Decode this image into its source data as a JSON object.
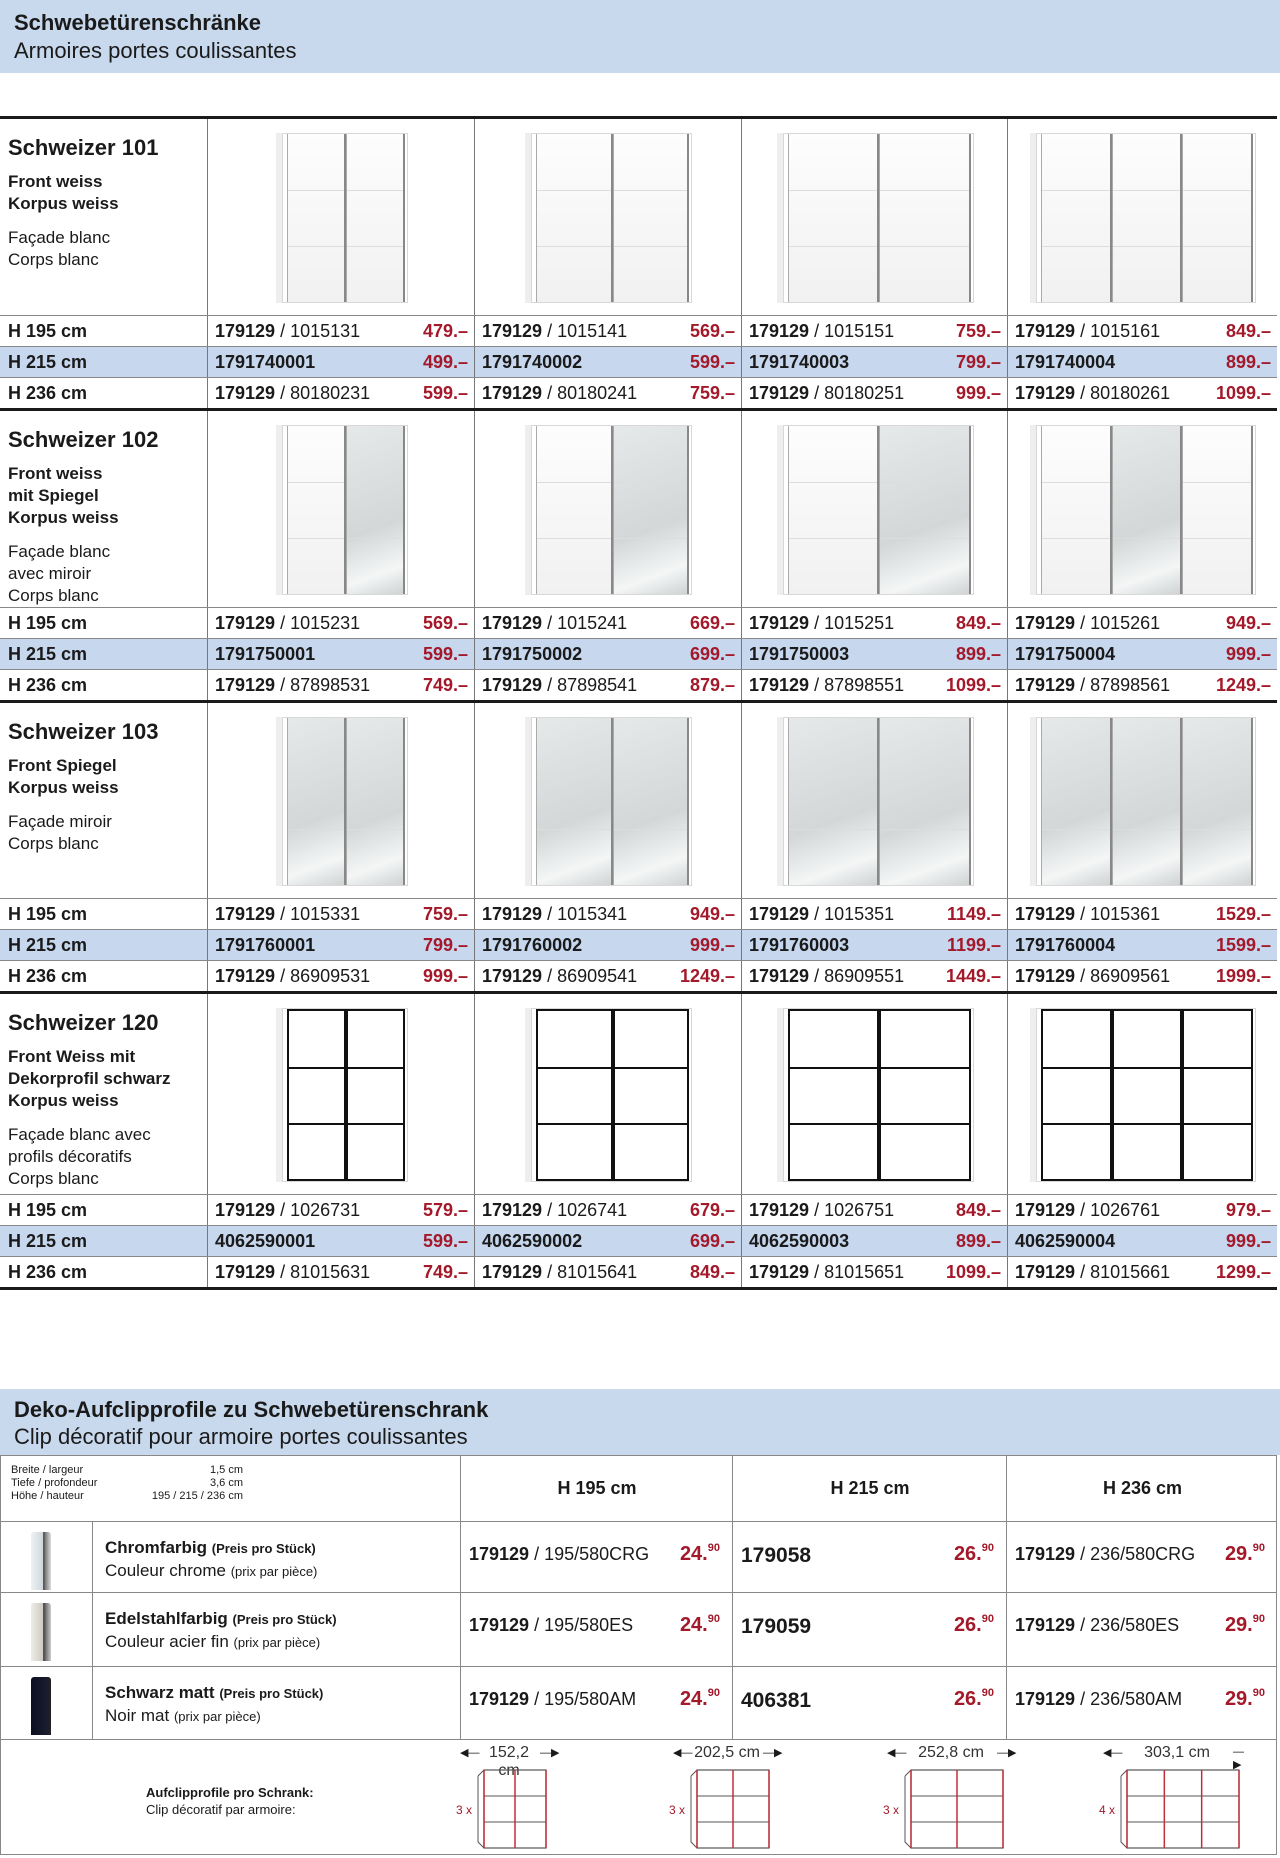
{
  "header": {
    "title": "Schwebetürenschränke",
    "subtitle": "Armoires portes coulissantes"
  },
  "products": [
    {
      "name": "Schweizer 101",
      "desc_de": [
        "Front weiss",
        "Korpus weiss"
      ],
      "desc_fr": [
        "Façade blanc",
        "Corps blanc"
      ],
      "style": "white",
      "rows": [
        {
          "height": "H 195 cm",
          "cells": [
            {
              "bold": "179129",
              "rest": " / 1015131",
              "price": "479.–"
            },
            {
              "bold": "179129",
              "rest": " / 1015141",
              "price": "569.–"
            },
            {
              "bold": "179129",
              "rest": " / 1015151",
              "price": "759.–"
            },
            {
              "bold": "179129",
              "rest": " / 1015161",
              "price": "849.–"
            }
          ]
        },
        {
          "height": "H 215 cm",
          "cells": [
            {
              "bold": "1791740001",
              "rest": "",
              "price": "499.–"
            },
            {
              "bold": "1791740002",
              "rest": "",
              "price": "599.–"
            },
            {
              "bold": "1791740003",
              "rest": "",
              "price": "799.–"
            },
            {
              "bold": "1791740004",
              "rest": "",
              "price": "899.–"
            }
          ]
        },
        {
          "height": "H 236 cm",
          "cells": [
            {
              "bold": "179129",
              "rest": " / 80180231",
              "price": "599.–"
            },
            {
              "bold": "179129",
              "rest": " / 80180241",
              "price": "759.–"
            },
            {
              "bold": "179129",
              "rest": " / 80180251",
              "price": "999.–"
            },
            {
              "bold": "179129",
              "rest": " / 80180261",
              "price": "1099.–"
            }
          ]
        }
      ]
    },
    {
      "name": "Schweizer 102",
      "desc_de": [
        "Front weiss",
        "mit Spiegel",
        "Korpus weiss"
      ],
      "desc_fr": [
        "Façade blanc",
        "avec miroir",
        "Corps blanc"
      ],
      "style": "partmirror",
      "rows": [
        {
          "height": "H 195 cm",
          "cells": [
            {
              "bold": "179129",
              "rest": " / 1015231",
              "price": "569.–"
            },
            {
              "bold": "179129",
              "rest": " / 1015241",
              "price": "669.–"
            },
            {
              "bold": "179129",
              "rest": " / 1015251",
              "price": "849.–"
            },
            {
              "bold": "179129",
              "rest": " / 1015261",
              "price": "949.–"
            }
          ]
        },
        {
          "height": "H 215 cm",
          "cells": [
            {
              "bold": "1791750001",
              "rest": "",
              "price": "599.–"
            },
            {
              "bold": "1791750002",
              "rest": "",
              "price": "699.–"
            },
            {
              "bold": "1791750003",
              "rest": "",
              "price": "899.–"
            },
            {
              "bold": "1791750004",
              "rest": "",
              "price": "999.–"
            }
          ]
        },
        {
          "height": "H 236 cm",
          "cells": [
            {
              "bold": "179129",
              "rest": " / 87898531",
              "price": "749.–"
            },
            {
              "bold": "179129",
              "rest": " / 87898541",
              "price": "879.–"
            },
            {
              "bold": "179129",
              "rest": " / 87898551",
              "price": "1099.–"
            },
            {
              "bold": "179129",
              "rest": " / 87898561",
              "price": "1249.–"
            }
          ]
        }
      ]
    },
    {
      "name": "Schweizer 103",
      "desc_de": [
        "Front Spiegel",
        "Korpus weiss"
      ],
      "desc_fr": [
        "Façade miroir",
        "Corps blanc"
      ],
      "style": "mirror",
      "rows": [
        {
          "height": "H 195 cm",
          "cells": [
            {
              "bold": "179129",
              "rest": " / 1015331",
              "price": "759.–"
            },
            {
              "bold": "179129",
              "rest": " / 1015341",
              "price": "949.–"
            },
            {
              "bold": "179129",
              "rest": " / 1015351",
              "price": "1149.–"
            },
            {
              "bold": "179129",
              "rest": " / 1015361",
              "price": "1529.–"
            }
          ]
        },
        {
          "height": "H 215 cm",
          "cells": [
            {
              "bold": "1791760001",
              "rest": "",
              "price": "799.–"
            },
            {
              "bold": "1791760002",
              "rest": "",
              "price": "999.–"
            },
            {
              "bold": "1791760003",
              "rest": "",
              "price": "1199.–"
            },
            {
              "bold": "1791760004",
              "rest": "",
              "price": "1599.–"
            }
          ]
        },
        {
          "height": "H 236 cm",
          "cells": [
            {
              "bold": "179129",
              "rest": " / 86909531",
              "price": "999.–"
            },
            {
              "bold": "179129",
              "rest": " / 86909541",
              "price": "1249.–"
            },
            {
              "bold": "179129",
              "rest": " / 86909551",
              "price": "1449.–"
            },
            {
              "bold": "179129",
              "rest": " / 86909561",
              "price": "1999.–"
            }
          ]
        }
      ]
    },
    {
      "name": "Schweizer 120",
      "desc_de": [
        "Front Weiss mit",
        "Dekorprofil schwarz",
        "Korpus weiss"
      ],
      "desc_fr": [
        "Façade blanc avec",
        "profils décoratifs",
        "Corps blanc"
      ],
      "style": "black",
      "rows": [
        {
          "height": "H 195 cm",
          "cells": [
            {
              "bold": "179129",
              "rest": " / 1026731",
              "price": "579.–"
            },
            {
              "bold": "179129",
              "rest": " / 1026741",
              "price": "679.–"
            },
            {
              "bold": "179129",
              "rest": " / 1026751",
              "price": "849.–"
            },
            {
              "bold": "179129",
              "rest": " / 1026761",
              "price": "979.–"
            }
          ]
        },
        {
          "height": "H 215 cm",
          "cells": [
            {
              "bold": "4062590001",
              "rest": "",
              "price": "599.–"
            },
            {
              "bold": "4062590002",
              "rest": "",
              "price": "699.–"
            },
            {
              "bold": "4062590003",
              "rest": "",
              "price": "899.–"
            },
            {
              "bold": "4062590004",
              "rest": "",
              "price": "999.–"
            }
          ]
        },
        {
          "height": "H 236 cm",
          "cells": [
            {
              "bold": "179129",
              "rest": " / 81015631",
              "price": "749.–"
            },
            {
              "bold": "179129",
              "rest": " / 81015641",
              "price": "849.–"
            },
            {
              "bold": "179129",
              "rest": " / 81015651",
              "price": "1099.–"
            },
            {
              "bold": "179129",
              "rest": " / 81015661",
              "price": "1299.–"
            }
          ]
        }
      ]
    }
  ],
  "clips": {
    "title": "Deko-Aufclipprofile zu Schwebetürenschrank",
    "subtitle": "Clip décoratif pour armoire portes coulissantes",
    "specs": [
      {
        "label": "Breite / largeur",
        "value": "1,5 cm"
      },
      {
        "label": "Tiefe / profondeur",
        "value": "3,6 cm"
      },
      {
        "label": "Höhe / hauteur",
        "value": "195 / 215 / 236 cm"
      }
    ],
    "columns": [
      "H 195 cm",
      "H 215 cm",
      "H 236 cm"
    ],
    "items": [
      {
        "color": "chrome",
        "name_de": "Chromfarbig",
        "note_de": "(Preis pro Stück)",
        "name_fr": "Couleur chrome",
        "note_fr": "(prix par pièce)",
        "cells": [
          {
            "bold": "179129",
            "rest": " / 195/580CRG",
            "int": "24.",
            "cents": "90"
          },
          {
            "bold": "179058",
            "rest": "",
            "int": "26.",
            "cents": "90"
          },
          {
            "bold": "179129",
            "rest": " / 236/580CRG",
            "int": "29.",
            "cents": "90"
          }
        ]
      },
      {
        "color": "steel",
        "name_de": "Edelstahlfarbig",
        "note_de": "(Preis pro Stück)",
        "name_fr": "Couleur acier fin",
        "note_fr": "(prix par pièce)",
        "cells": [
          {
            "bold": "179129",
            "rest": " / 195/580ES",
            "int": "24.",
            "cents": "90"
          },
          {
            "bold": "179059",
            "rest": "",
            "int": "26.",
            "cents": "90"
          },
          {
            "bold": "179129",
            "rest": " / 236/580ES",
            "int": "29.",
            "cents": "90"
          }
        ]
      },
      {
        "color": "black",
        "name_de": "Schwarz matt",
        "note_de": "(Preis pro Stück)",
        "name_fr": "Noir mat",
        "note_fr": "(prix par pièce)",
        "cells": [
          {
            "bold": "179129",
            "rest": " / 195/580AM",
            "int": "24.",
            "cents": "90"
          },
          {
            "bold": "406381",
            "rest": "",
            "int": "26.",
            "cents": "90"
          },
          {
            "bold": "179129",
            "rest": " / 236/580AM",
            "int": "29.",
            "cents": "90"
          }
        ]
      }
    ],
    "footer_de": "Aufclipprofile pro Schrank:",
    "footer_fr": "Clip décoratif par armoire:",
    "diagrams": [
      {
        "width": "152,2 cm",
        "count": "3 x",
        "doors": 2
      },
      {
        "width": "202,5 cm",
        "count": "3 x",
        "doors": 2
      },
      {
        "width": "252,8 cm",
        "count": "3 x",
        "doors": 2
      },
      {
        "width": "303,1 cm",
        "count": "4 x",
        "doors": 3
      }
    ]
  }
}
